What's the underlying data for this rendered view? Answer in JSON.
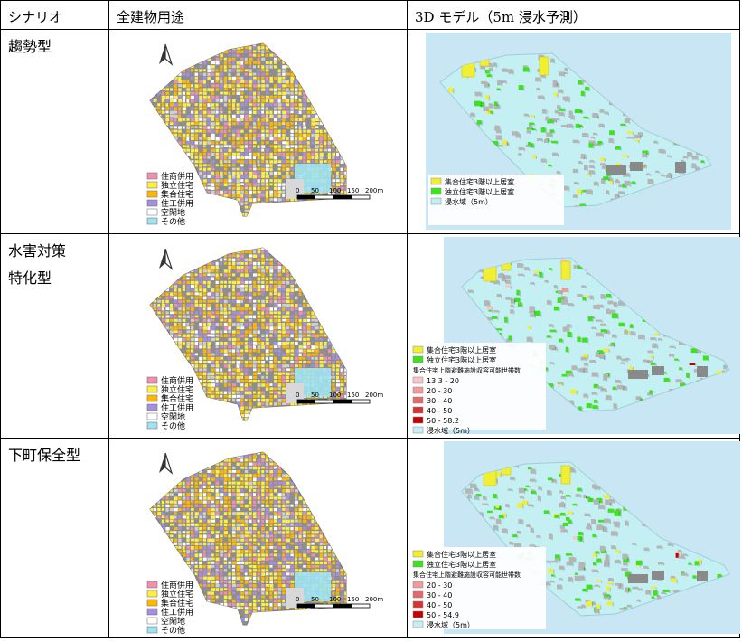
{
  "table": {
    "headers": [
      "シナリオ",
      "全建物用途",
      "3D モデル（5m 浸水予測）"
    ],
    "rows": [
      {
        "scenario_lines": [
          "趨勢型"
        ]
      },
      {
        "scenario_lines": [
          "水害対策",
          "特化型"
        ]
      },
      {
        "scenario_lines": [
          "下町保全型"
        ]
      }
    ]
  },
  "map_legend": {
    "items": [
      {
        "label": "住商併用",
        "color": "#f08fb0"
      },
      {
        "label": "独立住宅",
        "color": "#ffee44"
      },
      {
        "label": "集合住宅",
        "color": "#ffb800"
      },
      {
        "label": "住工併用",
        "color": "#a78fe0"
      },
      {
        "label": "空閑地",
        "color": "#ffffff"
      },
      {
        "label": "その他",
        "color": "#9fe2f2"
      }
    ],
    "scale_labels": [
      "0",
      "50",
      "100",
      "150",
      "200m"
    ]
  },
  "model_legends": [
    {
      "items": [
        {
          "label": "集合住宅3階以上居室",
          "color": "#f2ee30"
        },
        {
          "label": "独立住宅3階以上居室",
          "color": "#3ee21e"
        },
        {
          "label": "浸水域（5m）",
          "color": "#c4f0f4"
        }
      ],
      "title": "",
      "ranges": []
    },
    {
      "items": [
        {
          "label": "集合住宅3階以上居室",
          "color": "#f2ee30"
        },
        {
          "label": "独立住宅3階以上居室",
          "color": "#3ee21e"
        }
      ],
      "title": "集合住宅上階避難施設収容可能世帯数",
      "ranges": [
        {
          "label": "13.3 - 20",
          "color": "#f7c6c6"
        },
        {
          "label": "20 - 30",
          "color": "#f09a9a"
        },
        {
          "label": "30 - 40",
          "color": "#e66868"
        },
        {
          "label": "40 - 50",
          "color": "#d93434"
        },
        {
          "label": "50 - 58.2",
          "color": "#c40000"
        },
        {
          "label": "浸水域（5m）",
          "color": "#c4f0f4"
        }
      ]
    },
    {
      "items": [
        {
          "label": "集合住宅3階以上居室",
          "color": "#f2ee30"
        },
        {
          "label": "独立住宅3階以上居室",
          "color": "#3ee21e"
        }
      ],
      "title": "集合住宅上階避難施設収容可能世帯数",
      "ranges": [
        {
          "label": "20 - 30",
          "color": "#f09a9a"
        },
        {
          "label": "30 - 40",
          "color": "#e66868"
        },
        {
          "label": "40 - 50",
          "color": "#d93434"
        },
        {
          "label": "50 - 54.9",
          "color": "#c40000"
        },
        {
          "label": "浸水域（5m）",
          "color": "#c4f0f4"
        }
      ]
    }
  ]
}
